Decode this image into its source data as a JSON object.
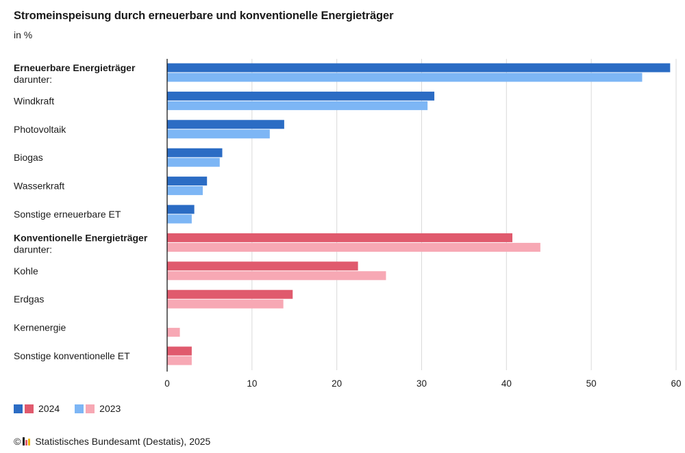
{
  "title": "Stromeinspeisung durch erneuerbare und konventionelle Energieträger",
  "subtitle": "in %",
  "chart_data": {
    "type": "bar",
    "orientation": "horizontal",
    "title": "Stromeinspeisung durch erneuerbare und konventionelle Energieträger",
    "subtitle": "in %",
    "xlim": [
      0,
      60
    ],
    "x_ticks": [
      0,
      10,
      20,
      30,
      40,
      50,
      60
    ],
    "grid": "vertical",
    "legend_position": "bottom-left",
    "categories": [
      {
        "label": "Erneuerbare Energieträger",
        "sublabel": "darunter:",
        "bold": true,
        "group": "renewable"
      },
      {
        "label": "Windkraft",
        "group": "renewable"
      },
      {
        "label": "Photovoltaik",
        "group": "renewable"
      },
      {
        "label": "Biogas",
        "group": "renewable"
      },
      {
        "label": "Wasserkraft",
        "group": "renewable"
      },
      {
        "label": "Sonstige erneuerbare ET",
        "group": "renewable"
      },
      {
        "label": "Konventionelle Energieträger",
        "sublabel": "darunter:",
        "bold": true,
        "group": "conventional"
      },
      {
        "label": "Kohle",
        "group": "conventional"
      },
      {
        "label": "Erdgas",
        "group": "conventional"
      },
      {
        "label": "Kernenergie",
        "group": "conventional"
      },
      {
        "label": "Sonstige konventionelle ET",
        "group": "conventional"
      }
    ],
    "series": [
      {
        "name": "2024",
        "values": [
          59.3,
          31.5,
          13.8,
          6.5,
          4.7,
          3.2,
          40.7,
          22.5,
          14.8,
          0,
          2.9
        ]
      },
      {
        "name": "2023",
        "values": [
          56.0,
          30.7,
          12.1,
          6.2,
          4.2,
          2.9,
          44.0,
          25.8,
          13.7,
          1.5,
          2.9
        ]
      }
    ],
    "colors": {
      "renewable_2024": "#2b6cc4",
      "renewable_2023": "#7db6f5",
      "conventional_2024": "#e05a6d",
      "conventional_2023": "#f7a8b4",
      "grid": "#d9d9d9",
      "axis": "#1a1a1a"
    }
  },
  "legend": [
    {
      "label": "2024",
      "colors": [
        "#2b6cc4",
        "#e05a6d"
      ]
    },
    {
      "label": "2023",
      "colors": [
        "#7db6f5",
        "#f7a8b4"
      ]
    }
  ],
  "source": {
    "copyright": "©",
    "text": "Statistisches Bundesamt (Destatis), 2025"
  }
}
